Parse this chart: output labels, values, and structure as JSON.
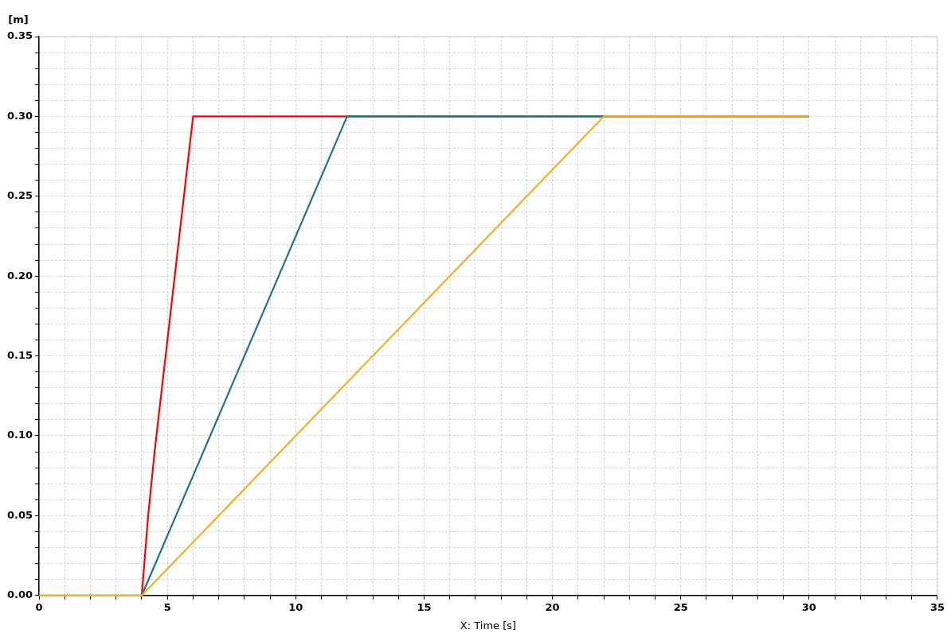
{
  "chart_data": {
    "type": "line",
    "xlabel": "X: Time [s]",
    "ylabel": "[m]",
    "xlim": [
      0,
      35
    ],
    "ylim": [
      0,
      0.35
    ],
    "xticks": [
      0,
      {
        "value": 1,
        "label": null
      },
      {
        "value": 2,
        "label": null
      },
      {
        "value": 3,
        "label": null
      },
      {
        "value": 4,
        "label": null
      },
      5,
      {
        "value": 6,
        "label": null
      },
      {
        "value": 7,
        "label": null
      },
      {
        "value": 8,
        "label": null
      },
      {
        "value": 9,
        "label": null
      },
      10,
      {
        "value": 11,
        "label": null
      },
      {
        "value": 12,
        "label": null
      },
      {
        "value": 13,
        "label": null
      },
      {
        "value": 14,
        "label": null
      },
      15,
      {
        "value": 16,
        "label": null
      },
      {
        "value": 17,
        "label": null
      },
      {
        "value": 18,
        "label": null
      },
      {
        "value": 19,
        "label": null
      },
      20,
      {
        "value": 21,
        "label": null
      },
      {
        "value": 22,
        "label": null
      },
      {
        "value": 23,
        "label": null
      },
      {
        "value": 24,
        "label": null
      },
      25,
      {
        "value": 26,
        "label": null
      },
      {
        "value": 27,
        "label": null
      },
      {
        "value": 28,
        "label": null
      },
      {
        "value": 29,
        "label": null
      },
      30,
      {
        "value": 31,
        "label": null
      },
      {
        "value": 32,
        "label": null
      },
      {
        "value": 33,
        "label": null
      },
      {
        "value": 34,
        "label": null
      },
      35
    ],
    "yticks": [
      {
        "value": 0,
        "label": "0.00"
      },
      {
        "value": 0.01,
        "label": null
      },
      {
        "value": 0.02,
        "label": null
      },
      {
        "value": 0.03,
        "label": null
      },
      {
        "value": 0.04,
        "label": null
      },
      {
        "value": 0.05,
        "label": "0.05"
      },
      {
        "value": 0.06,
        "label": null
      },
      {
        "value": 0.07,
        "label": null
      },
      {
        "value": 0.08,
        "label": null
      },
      {
        "value": 0.09,
        "label": null
      },
      {
        "value": 0.1,
        "label": "0.10"
      },
      {
        "value": 0.11,
        "label": null
      },
      {
        "value": 0.12,
        "label": null
      },
      {
        "value": 0.13,
        "label": null
      },
      {
        "value": 0.14,
        "label": null
      },
      {
        "value": 0.15,
        "label": "0.15"
      },
      {
        "value": 0.16,
        "label": null
      },
      {
        "value": 0.17,
        "label": null
      },
      {
        "value": 0.18,
        "label": null
      },
      {
        "value": 0.19,
        "label": null
      },
      {
        "value": 0.2,
        "label": "0.20"
      },
      {
        "value": 0.21,
        "label": null
      },
      {
        "value": 0.22,
        "label": null
      },
      {
        "value": 0.23,
        "label": null
      },
      {
        "value": 0.24,
        "label": null
      },
      {
        "value": 0.25,
        "label": "0.25"
      },
      {
        "value": 0.26,
        "label": null
      },
      {
        "value": 0.27,
        "label": null
      },
      {
        "value": 0.28,
        "label": null
      },
      {
        "value": 0.29,
        "label": null
      },
      {
        "value": 0.3,
        "label": "0.30"
      },
      {
        "value": 0.31,
        "label": null
      },
      {
        "value": 0.32,
        "label": null
      },
      {
        "value": 0.33,
        "label": null
      },
      {
        "value": 0.34,
        "label": null
      },
      {
        "value": 0.35,
        "label": "0.35"
      }
    ],
    "grid": true,
    "legend": false,
    "marker": "none",
    "line_style": "solid",
    "series": [
      {
        "color": "#ff0000",
        "x": [
          4,
          4.1,
          4.25,
          4.5,
          5,
          5.5,
          6,
          30
        ],
        "values": [
          0,
          0.02,
          0.05,
          0.09,
          0.16,
          0.23,
          0.3,
          0.3
        ]
      },
      {
        "color": "#1f7391",
        "x": [
          0,
          4,
          12,
          30
        ],
        "values": [
          0,
          0,
          0.3,
          0.3
        ]
      },
      {
        "color": "#f7ae22",
        "x": [
          0,
          4,
          22,
          30
        ],
        "values": [
          0,
          0,
          0.3,
          0.3
        ]
      }
    ]
  }
}
